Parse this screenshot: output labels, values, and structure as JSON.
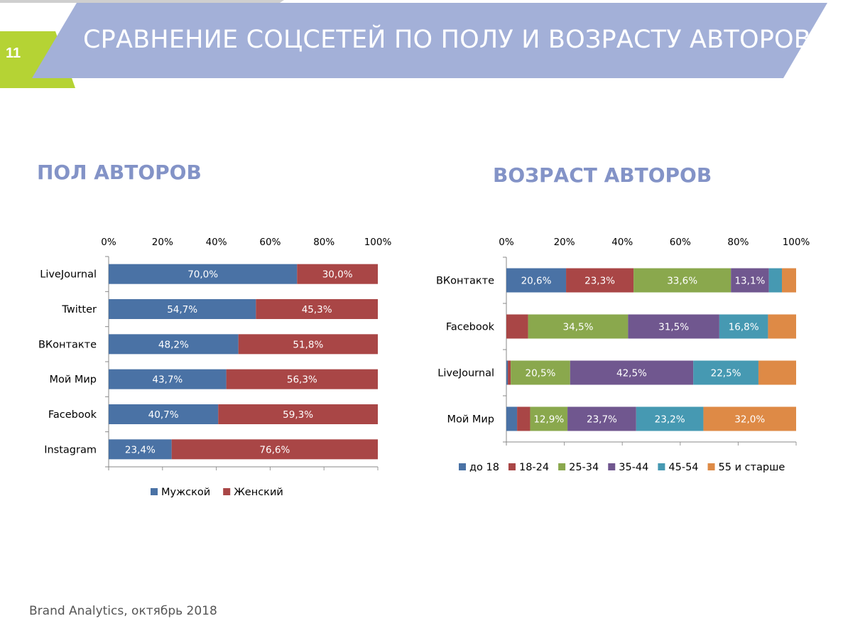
{
  "header": {
    "slide_number": "11",
    "title": "СРАВНЕНИЕ СОЦСЕТЕЙ ПО ПОЛУ И ВОЗРАСТУ АВТОРОВ"
  },
  "sections": {
    "gender_title": "ПОЛ АВТОРОВ",
    "age_title": "ВОЗРАСТ АВТОРОВ"
  },
  "footer": {
    "source": "Brand Analytics, октябрь 2018"
  },
  "colors": {
    "header_band": "#a3b0d8",
    "accent_green": "#b5d334",
    "grey_bar": "#cfcfcf",
    "title_text": "#8393c7"
  },
  "chart_data": [
    {
      "type": "bar",
      "orientation": "horizontal",
      "stacked": "percent",
      "categories": [
        "LiveJournal",
        "Twitter",
        "ВКонтакте",
        "Мой Мир",
        "Facebook",
        "Instagram"
      ],
      "x_ticks": [
        "0%",
        "20%",
        "40%",
        "60%",
        "80%",
        "100%"
      ],
      "xlim": [
        0,
        100
      ],
      "legend_position": "bottom",
      "series": [
        {
          "name": "Мужской",
          "color": "#4a72a5",
          "values": [
            70.0,
            54.7,
            48.2,
            43.7,
            40.7,
            23.4
          ],
          "labels": [
            "70,0%",
            "54,7%",
            "48,2%",
            "43,7%",
            "40,7%",
            "23,4%"
          ]
        },
        {
          "name": "Женский",
          "color": "#a94646",
          "values": [
            30.0,
            45.3,
            51.8,
            56.3,
            59.3,
            76.6
          ],
          "labels": [
            "30,0%",
            "45,3%",
            "51,8%",
            "56,3%",
            "59,3%",
            "76,6%"
          ]
        }
      ]
    },
    {
      "type": "bar",
      "orientation": "horizontal",
      "stacked": "percent",
      "categories": [
        "ВКонтакте",
        "Facebook",
        "LiveJournal",
        "Мой Мир"
      ],
      "x_ticks": [
        "0%",
        "20%",
        "40%",
        "60%",
        "80%",
        "100%"
      ],
      "xlim": [
        0,
        100
      ],
      "legend_position": "bottom",
      "series": [
        {
          "name": "до 18",
          "color": "#4a72a5",
          "values": [
            20.6,
            0.0,
            0.5,
            3.7
          ],
          "labels": [
            "20,6%",
            "",
            "",
            ""
          ]
        },
        {
          "name": "18-24",
          "color": "#a94646",
          "values": [
            23.3,
            7.5,
            1.0,
            4.5
          ],
          "labels": [
            "23,3%",
            "",
            "",
            ""
          ]
        },
        {
          "name": "25-34",
          "color": "#8aa84d",
          "values": [
            33.6,
            34.5,
            20.5,
            12.9
          ],
          "labels": [
            "33,6%",
            "34,5%",
            "20,5%",
            "12,9%"
          ]
        },
        {
          "name": "35-44",
          "color": "#70578f",
          "values": [
            13.1,
            31.5,
            42.5,
            23.7
          ],
          "labels": [
            "13,1%",
            "31,5%",
            "42,5%",
            "23,7%"
          ]
        },
        {
          "name": "45-54",
          "color": "#4699b2",
          "values": [
            4.5,
            16.8,
            22.5,
            23.2
          ],
          "labels": [
            "",
            "16,8%",
            "22,5%",
            "23,2%"
          ]
        },
        {
          "name": "55 и старше",
          "color": "#de8a46",
          "values": [
            4.9,
            9.7,
            13.0,
            32.0
          ],
          "labels": [
            "",
            "",
            "",
            "32,0%"
          ]
        }
      ]
    }
  ]
}
